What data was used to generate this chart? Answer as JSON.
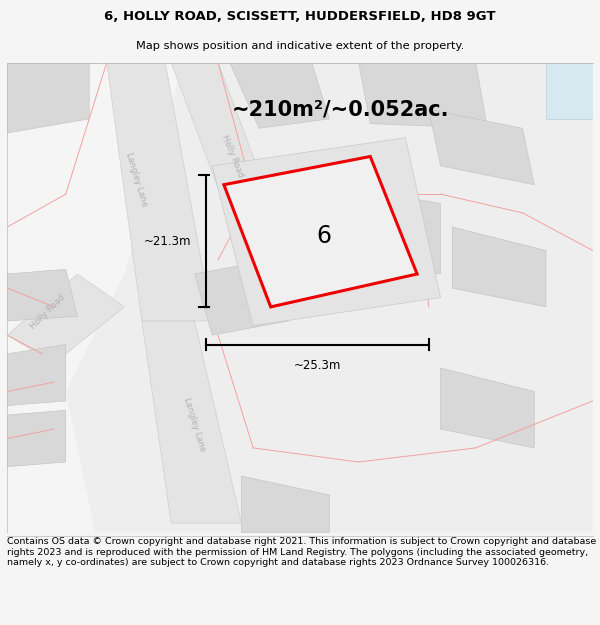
{
  "title_line1": "6, HOLLY ROAD, SCISSETT, HUDDERSFIELD, HD8 9GT",
  "title_line2": "Map shows position and indicative extent of the property.",
  "area_text": "~210m²/~0.052ac.",
  "property_number": "6",
  "dim_width": "~25.3m",
  "dim_height": "~21.3m",
  "footer_text": "Contains OS data © Crown copyright and database right 2021. This information is subject to Crown copyright and database rights 2023 and is reproduced with the permission of HM Land Registry. The polygons (including the associated geometry, namely x, y co-ordinates) are subject to Crown copyright and database rights 2023 Ordnance Survey 100026316.",
  "bg_color": "#f5f5f5",
  "map_bg": "#ffffff",
  "plot_fill": "#e8e8e8",
  "plot_border": "#c8c8c8",
  "highlight_color": "#ee0000",
  "road_fill": "#e4e4e4",
  "road_border": "#c8c8c8",
  "bld_fill": "#d8d8d8",
  "bld_border": "#c0c0c0",
  "red_line": "#f4a0a0",
  "title_fontsize": 9.5,
  "subtitle_fontsize": 8.2,
  "area_fontsize": 15,
  "number_fontsize": 17,
  "dim_fontsize": 8.5,
  "footer_fontsize": 6.8,
  "label_fontsize": 6.0,
  "label_color": "#b0b0b0"
}
